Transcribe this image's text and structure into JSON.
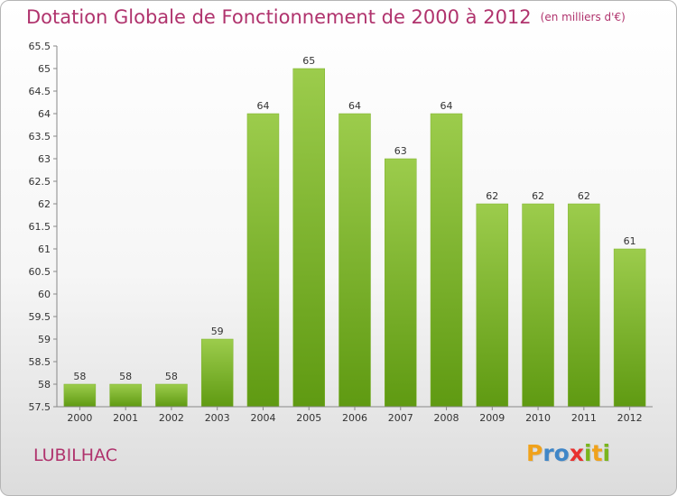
{
  "title": "Dotation Globale de Fonctionnement de 2000 à 2012",
  "subtitle": "(en milliers d'€)",
  "commune": "LUBILHAC",
  "logo": {
    "letters": [
      "P",
      "r",
      "o",
      "x",
      "i",
      "t",
      "i"
    ],
    "colors": [
      "#f0a21c",
      "#3f86c7",
      "#3f86c7",
      "#e8312f",
      "#7ab51d",
      "#f0a21c",
      "#7ab51d"
    ]
  },
  "colors": {
    "title": "#b0336d",
    "bar_light": "#9ccc4c",
    "bar_dark": "#5f9a12"
  },
  "chart_data": {
    "type": "bar",
    "categories": [
      "2000",
      "2001",
      "2002",
      "2003",
      "2004",
      "2005",
      "2006",
      "2007",
      "2008",
      "2009",
      "2010",
      "2011",
      "2012"
    ],
    "values": [
      58,
      58,
      58,
      59,
      64,
      65,
      64,
      63,
      64,
      62,
      62,
      62,
      61
    ],
    "title": "Dotation Globale de Fonctionnement de 2000 à 2012",
    "ylim": [
      57.5,
      65.5
    ],
    "yticks": [
      "57.5",
      "58",
      "58.5",
      "59",
      "59.5",
      "60",
      "60.5",
      "61",
      "61.5",
      "62",
      "62.5",
      "63",
      "63.5",
      "64",
      "64.5",
      "65",
      "65.5"
    ],
    "grid": false
  }
}
